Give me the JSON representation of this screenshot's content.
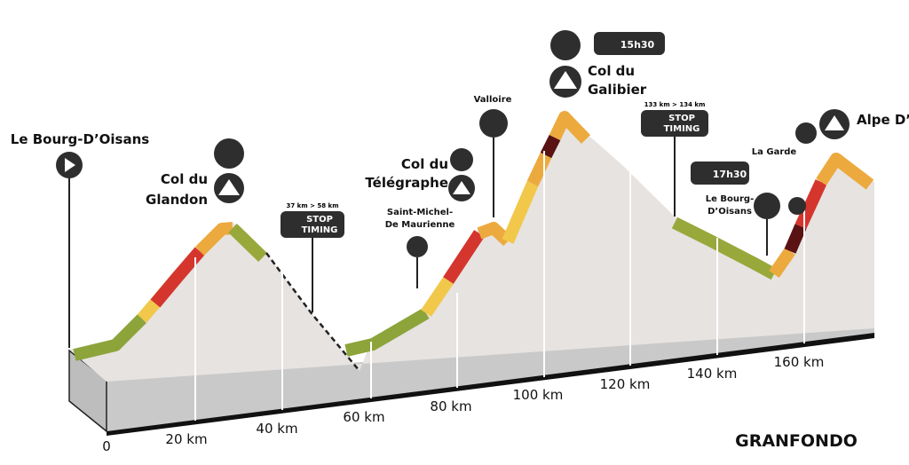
{
  "start": {
    "label": "Le Bourg-D’Oisans"
  },
  "passes": [
    {
      "label_lines": [
        "Col du",
        "Glandon"
      ]
    },
    {
      "label_lines": [
        "Saint-Michel-",
        "De Maurienne"
      ]
    },
    {
      "label_lines": [
        "Col du",
        "Télégraphe"
      ]
    },
    {
      "label_lines": [
        "Valloire"
      ]
    },
    {
      "label_lines": [
        "Col du",
        "Galibier"
      ]
    },
    {
      "label_lines": [
        "Le Bourg-",
        "D’Oisans"
      ]
    },
    {
      "label_lines": [
        "La Garde"
      ]
    },
    {
      "label_lines": [
        "Alpe D’"
      ]
    }
  ],
  "stop_timings": [
    {
      "range": "37 km > 58 km",
      "text_lines": [
        "STOP",
        "TIMING"
      ]
    },
    {
      "range": "133 km > 134 km",
      "text_lines": [
        "STOP",
        "TIMING"
      ]
    }
  ],
  "cutoffs": [
    "15h30",
    "17h30"
  ],
  "distance_labels": [
    "0",
    "20 km",
    "40 km",
    "60 km",
    "80 km",
    "100 km",
    "120 km",
    "140 km",
    "160 km"
  ],
  "footer": "GRANFONDO"
}
